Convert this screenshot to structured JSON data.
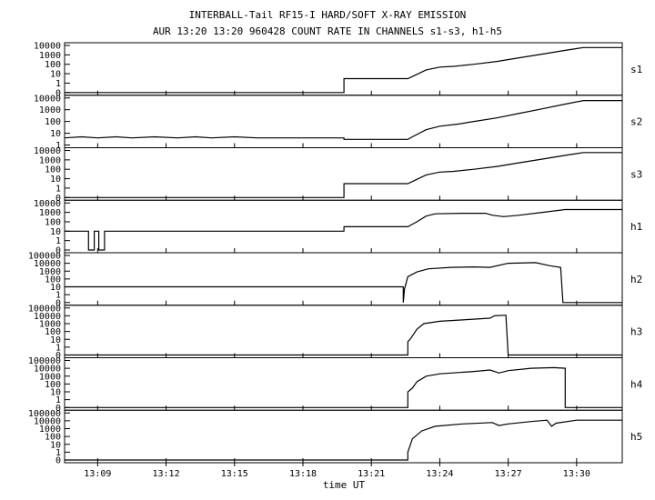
{
  "title_line1": "INTERBALL-Tail RF15-I HARD/SOFT X-RAY EMISSION",
  "title_line2": "AUR 13:20 13:20 960428  COUNT RATE IN CHANNELS s1-s3, h1-h5",
  "chart_data": {
    "type": "line",
    "title": "INTERBALL-Tail RF15-I HARD/SOFT X-RAY EMISSION",
    "subtitle": "AUR 13:20 13:20 960428  COUNT RATE IN CHANNELS s1-s3, h1-h5",
    "xlabel": "time UT",
    "x_unit": "minutes after 13:00 UT",
    "xlim": [
      7.55,
      32.0
    ],
    "x_tick_values": [
      9,
      12,
      15,
      18,
      21,
      24,
      27,
      30
    ],
    "x_tick_labels": [
      "13:09",
      "13:12",
      "13:15",
      "13:18",
      "13:21",
      "13:24",
      "13:27",
      "13:30"
    ],
    "y_scale": "log",
    "grid": false,
    "legend": "none",
    "line_color": "#000000",
    "series": [
      {
        "name": "s1",
        "y_ticks": [
          0,
          1,
          10,
          100,
          1000,
          10000
        ],
        "y_tick_labels": [
          "0",
          "1",
          "10",
          "100",
          "1000",
          "10000"
        ],
        "points": [
          [
            7.55,
            0
          ],
          [
            19.8,
            0
          ],
          [
            19.8,
            3
          ],
          [
            22.6,
            3
          ],
          [
            22.8,
            5
          ],
          [
            23.4,
            25
          ],
          [
            24.0,
            50
          ],
          [
            24.6,
            60
          ],
          [
            25.5,
            100
          ],
          [
            26.5,
            200
          ],
          [
            27.5,
            500
          ],
          [
            28.5,
            1200
          ],
          [
            29.5,
            3000
          ],
          [
            30.3,
            6000
          ],
          [
            32.0,
            6000
          ]
        ]
      },
      {
        "name": "s2",
        "y_ticks": [
          1,
          10,
          100,
          1000,
          10000
        ],
        "y_tick_labels": [
          "1",
          "10",
          "100",
          "1000",
          "10000"
        ],
        "points": [
          [
            7.55,
            4
          ],
          [
            8.3,
            5
          ],
          [
            9.0,
            4
          ],
          [
            9.8,
            5
          ],
          [
            10.5,
            4
          ],
          [
            11.5,
            5
          ],
          [
            12.5,
            4
          ],
          [
            13.3,
            5
          ],
          [
            14.0,
            4
          ],
          [
            15.0,
            5
          ],
          [
            16.0,
            4
          ],
          [
            17.0,
            4
          ],
          [
            18.0,
            4
          ],
          [
            19.8,
            4
          ],
          [
            19.8,
            3
          ],
          [
            22.6,
            3
          ],
          [
            22.8,
            5
          ],
          [
            23.4,
            20
          ],
          [
            24.0,
            40
          ],
          [
            24.8,
            60
          ],
          [
            25.5,
            100
          ],
          [
            26.5,
            200
          ],
          [
            27.5,
            500
          ],
          [
            28.5,
            1200
          ],
          [
            29.5,
            3000
          ],
          [
            30.3,
            6000
          ],
          [
            32.0,
            6000
          ]
        ]
      },
      {
        "name": "s3",
        "y_ticks": [
          0,
          1,
          10,
          100,
          1000,
          10000
        ],
        "y_tick_labels": [
          "0",
          "1",
          "10",
          "100",
          "1000",
          "10000"
        ],
        "points": [
          [
            7.55,
            0
          ],
          [
            19.8,
            0
          ],
          [
            19.8,
            3
          ],
          [
            22.6,
            3
          ],
          [
            22.8,
            5
          ],
          [
            23.4,
            25
          ],
          [
            24.0,
            50
          ],
          [
            24.6,
            60
          ],
          [
            25.5,
            100
          ],
          [
            26.5,
            200
          ],
          [
            27.5,
            500
          ],
          [
            28.5,
            1200
          ],
          [
            29.5,
            3000
          ],
          [
            30.3,
            6000
          ],
          [
            32.0,
            6000
          ]
        ]
      },
      {
        "name": "h1",
        "y_ticks": [
          0,
          1,
          10,
          100,
          1000,
          10000
        ],
        "y_tick_labels": [
          "0",
          "1",
          "10",
          "100",
          "1000",
          "10000"
        ],
        "points": [
          [
            7.55,
            10
          ],
          [
            8.6,
            10
          ],
          [
            8.6,
            0
          ],
          [
            8.85,
            0
          ],
          [
            8.85,
            10
          ],
          [
            9.05,
            10
          ],
          [
            9.05,
            0
          ],
          [
            9.3,
            0
          ],
          [
            9.3,
            10
          ],
          [
            12.0,
            10
          ],
          [
            15.0,
            10
          ],
          [
            18.0,
            10
          ],
          [
            19.8,
            10
          ],
          [
            19.8,
            30
          ],
          [
            22.6,
            30
          ],
          [
            23.0,
            100
          ],
          [
            23.4,
            400
          ],
          [
            23.8,
            700
          ],
          [
            25.0,
            800
          ],
          [
            26.0,
            800
          ],
          [
            26.3,
            500
          ],
          [
            26.8,
            350
          ],
          [
            27.5,
            500
          ],
          [
            28.5,
            1000
          ],
          [
            29.5,
            2000
          ],
          [
            32.0,
            2000
          ]
        ]
      },
      {
        "name": "h2",
        "y_ticks": [
          0,
          1,
          10,
          100,
          1000,
          10000,
          100000
        ],
        "y_tick_labels": [
          "0",
          "1",
          "10",
          "100",
          "1000",
          "10000",
          "100000"
        ],
        "points": [
          [
            7.55,
            10
          ],
          [
            22.4,
            10
          ],
          [
            22.4,
            0
          ],
          [
            22.45,
            5
          ],
          [
            22.6,
            200
          ],
          [
            23.0,
            800
          ],
          [
            23.5,
            2000
          ],
          [
            24.5,
            3000
          ],
          [
            25.5,
            3500
          ],
          [
            26.2,
            3000
          ],
          [
            27.0,
            10000
          ],
          [
            28.2,
            12000
          ],
          [
            28.8,
            5000
          ],
          [
            29.3,
            3000
          ],
          [
            29.4,
            0
          ],
          [
            32.0,
            0
          ]
        ]
      },
      {
        "name": "h3",
        "y_ticks": [
          0,
          1,
          10,
          100,
          1000,
          10000,
          100000
        ],
        "y_tick_labels": [
          "0",
          "1",
          "10",
          "100",
          "1000",
          "10000",
          "100000"
        ],
        "points": [
          [
            7.55,
            0
          ],
          [
            22.6,
            0
          ],
          [
            22.6,
            5
          ],
          [
            22.7,
            10
          ],
          [
            23.0,
            200
          ],
          [
            23.3,
            1000
          ],
          [
            24.0,
            2000
          ],
          [
            25.0,
            3000
          ],
          [
            26.2,
            5000
          ],
          [
            26.4,
            10000
          ],
          [
            26.9,
            12000
          ],
          [
            27.0,
            0
          ],
          [
            32.0,
            0
          ]
        ]
      },
      {
        "name": "h4",
        "y_ticks": [
          0,
          1,
          10,
          100,
          1000,
          10000,
          100000
        ],
        "y_tick_labels": [
          "0",
          "1",
          "10",
          "100",
          "1000",
          "10000",
          "100000"
        ],
        "points": [
          [
            7.55,
            0
          ],
          [
            22.6,
            0
          ],
          [
            22.6,
            10
          ],
          [
            22.8,
            30
          ],
          [
            23.0,
            200
          ],
          [
            23.4,
            1000
          ],
          [
            24.0,
            2000
          ],
          [
            25.5,
            4000
          ],
          [
            26.2,
            6000
          ],
          [
            26.6,
            2500
          ],
          [
            27.0,
            5000
          ],
          [
            28.0,
            10000
          ],
          [
            29.0,
            12000
          ],
          [
            29.5,
            10000
          ],
          [
            29.5,
            0
          ],
          [
            32.0,
            0
          ]
        ]
      },
      {
        "name": "h5",
        "y_ticks": [
          0,
          1,
          10,
          100,
          1000,
          10000,
          100000
        ],
        "y_tick_labels": [
          "0",
          "1",
          "10",
          "100",
          "1000",
          "10000",
          "100000"
        ],
        "points": [
          [
            7.55,
            0
          ],
          [
            22.6,
            0
          ],
          [
            22.6,
            1
          ],
          [
            22.8,
            50
          ],
          [
            23.2,
            500
          ],
          [
            23.8,
            2000
          ],
          [
            25.0,
            4000
          ],
          [
            26.3,
            6000
          ],
          [
            26.6,
            2500
          ],
          [
            27.0,
            4000
          ],
          [
            28.0,
            8000
          ],
          [
            28.7,
            12000
          ],
          [
            28.9,
            2000
          ],
          [
            29.1,
            5000
          ],
          [
            30.0,
            12000
          ],
          [
            32.0,
            12000
          ]
        ]
      }
    ]
  }
}
